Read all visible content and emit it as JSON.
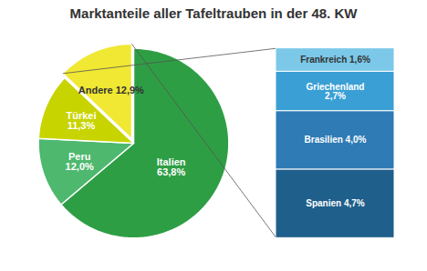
{
  "chart_data": [
    {
      "type": "pie",
      "title": "Marktanteile aller Tafeltrauben in der 48. KW",
      "categories": [
        "Italien",
        "Peru",
        "Türkei",
        "Andere"
      ],
      "values": [
        63.8,
        12.0,
        11.3,
        12.9
      ],
      "value_labels": [
        "Italien\n63,8%",
        "Peru\n12,0%",
        "Türkei\n11,3%",
        "Andere 12,9%"
      ],
      "colors": [
        "#2e9e44",
        "#4db86e",
        "#c8d400",
        "#f0e832"
      ],
      "data_labels": true
    },
    {
      "type": "bar",
      "stacked": true,
      "categories": [
        "Spanien",
        "Brasilien",
        "Griechenland",
        "Frankreich"
      ],
      "values": [
        4.7,
        4.0,
        2.7,
        1.6
      ],
      "value_labels": [
        "Spanien 4,7%",
        "Brasilien 4,0%",
        "Griechenland\n2,7%",
        "Frankreich 1,6%"
      ],
      "colors": [
        "#1f5f8b",
        "#2e7bb5",
        "#3a9fd4",
        "#7bc8e8"
      ],
      "ylim": [
        0,
        13
      ],
      "data_labels": true,
      "tick_labels": false
    }
  ]
}
